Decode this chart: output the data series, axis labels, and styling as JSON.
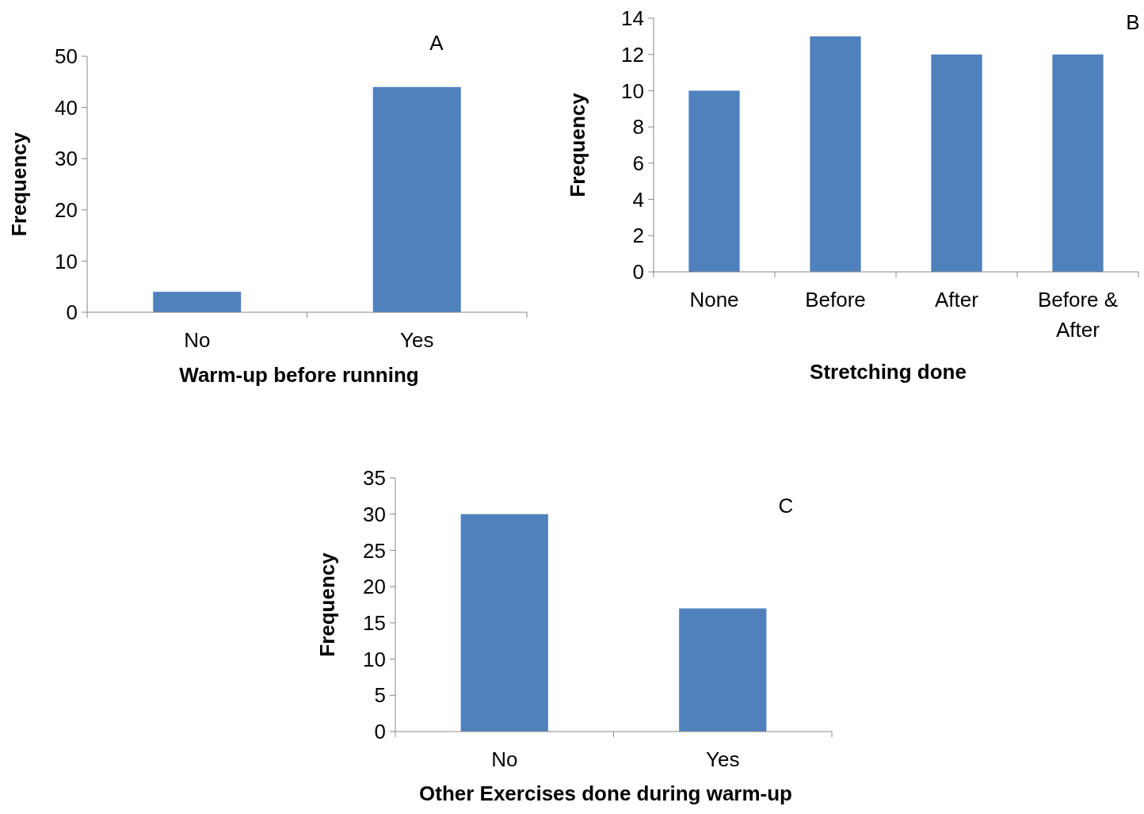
{
  "chart_data": [
    {
      "type": "bar",
      "title": "A",
      "categories": [
        "No",
        "Yes"
      ],
      "values": [
        4,
        44
      ],
      "color": "#4f81bd",
      "xlabel": "Warm-up before running",
      "ylabel": "Frequency",
      "ylim": [
        0,
        50
      ],
      "yticks": [
        0,
        10,
        20,
        30,
        40,
        50
      ],
      "grid": false
    },
    {
      "type": "bar",
      "title": "B",
      "categories": [
        "None",
        "Before",
        "After",
        "Before & After"
      ],
      "values": [
        10,
        13,
        12,
        12
      ],
      "color": "#4f81bd",
      "xlabel": "Stretching done",
      "ylabel": "Frequency",
      "ylim": [
        0,
        14
      ],
      "yticks": [
        0,
        2,
        4,
        6,
        8,
        10,
        12,
        14
      ],
      "grid": false
    },
    {
      "type": "bar",
      "title": "C",
      "categories": [
        "No",
        "Yes"
      ],
      "values": [
        30,
        17
      ],
      "color": "#4f81bd",
      "xlabel": "Other Exercises done during warm-up",
      "ylabel": "Frequency",
      "ylim": [
        0,
        35
      ],
      "yticks": [
        0,
        5,
        10,
        15,
        20,
        25,
        30,
        35
      ],
      "grid": false
    }
  ]
}
